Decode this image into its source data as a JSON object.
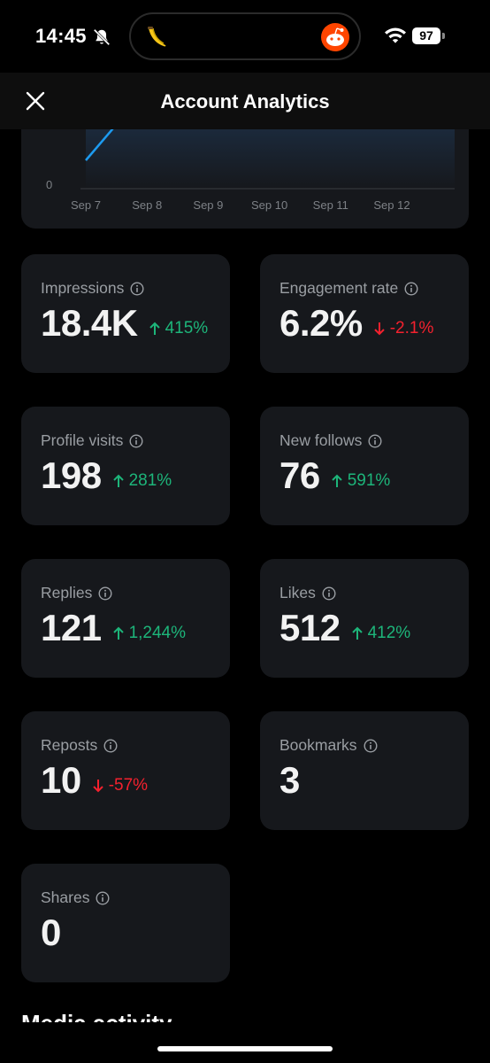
{
  "status_bar": {
    "time": "14:45",
    "battery": "97",
    "icons": [
      "bell-slash-icon",
      "banana-icon",
      "reddit-icon",
      "wifi-icon",
      "battery-icon"
    ]
  },
  "header": {
    "title": "Account Analytics",
    "close_icon": "close-icon"
  },
  "chart_data": {
    "type": "line",
    "categories": [
      "Sep 7",
      "Sep 8",
      "Sep 9",
      "Sep 10",
      "Sep 11",
      "Sep 12"
    ],
    "y_tick_labels": [
      "0"
    ],
    "line_color": "#1d9bf0"
  },
  "stats": [
    {
      "label": "Impressions",
      "value": "18.4K",
      "change": "415%",
      "direction": "up"
    },
    {
      "label": "Engagement rate",
      "value": "6.2%",
      "change": "-2.1%",
      "direction": "down"
    },
    {
      "label": "Profile visits",
      "value": "198",
      "change": "281%",
      "direction": "up"
    },
    {
      "label": "New follows",
      "value": "76",
      "change": "591%",
      "direction": "up"
    },
    {
      "label": "Replies",
      "value": "121",
      "change": "1,244%",
      "direction": "up"
    },
    {
      "label": "Likes",
      "value": "512",
      "change": "412%",
      "direction": "up"
    },
    {
      "label": "Reposts",
      "value": "10",
      "change": "-57%",
      "direction": "down"
    },
    {
      "label": "Bookmarks",
      "value": "3",
      "change": "",
      "direction": ""
    },
    {
      "label": "Shares",
      "value": "0",
      "change": "",
      "direction": ""
    }
  ],
  "section_heading": "Media activity",
  "colors": {
    "background": "#000000",
    "card": "#16181c",
    "positive": "#1db57a",
    "negative": "#f4212e",
    "label": "#9a9ea3"
  }
}
